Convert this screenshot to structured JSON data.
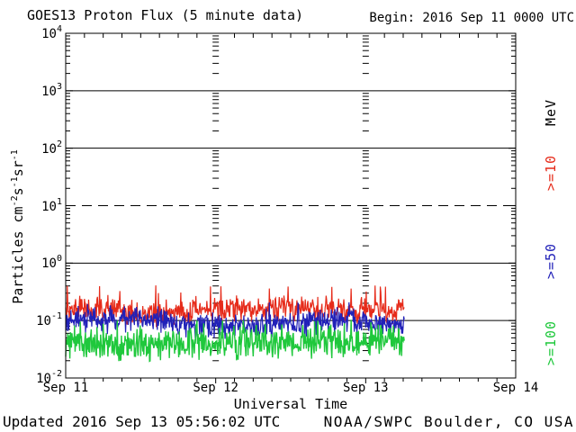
{
  "page": {
    "background": "#ffffff",
    "text_color": "#000000"
  },
  "header": {
    "title": "GOES13 Proton Flux (5 minute data)",
    "begin": "Begin: 2016 Sep 11 0000 UTC"
  },
  "footer": {
    "updated": "Updated 2016 Sep 13 05:56:02 UTC",
    "source": "NOAA/SWPC Boulder, CO USA"
  },
  "chart_data": {
    "type": "line",
    "title": "GOES13 Proton Flux (5 minute data)",
    "x_axis": {
      "label": "Universal Time",
      "start": "2016 Sep 11 0000 UTC",
      "span_days": 3,
      "tick_labels": [
        "Sep 11",
        "Sep 12",
        "Sep 13",
        "Sep 14"
      ],
      "minor_tick_hours": 3
    },
    "y_axis": {
      "label_text": "Particles cm⁻²s⁻¹sr⁻¹",
      "label_parts": [
        [
          "t",
          "Particles cm"
        ],
        [
          "s",
          "-2"
        ],
        [
          "t",
          "s"
        ],
        [
          "s",
          "-1"
        ],
        [
          "t",
          "sr"
        ],
        [
          "s",
          "-1"
        ]
      ],
      "scale": "log",
      "range": [
        0.01,
        10000
      ],
      "decade_exponents": [
        4,
        3,
        2,
        1,
        0,
        -1,
        -2
      ],
      "solid_gridlines": [
        1000,
        100,
        1,
        0.1
      ],
      "dashed_gridlines": [
        10
      ],
      "unit_label": "MeV",
      "axis_color": "#000000"
    },
    "series": [
      {
        "name": ">=10",
        "color": "#e62b1a",
        "typical": 0.145,
        "range_low": 0.095,
        "range_high": 0.27,
        "peak": 0.42,
        "spike_prob": 0.05
      },
      {
        "name": ">=50",
        "color": "#2121b8",
        "typical": 0.09,
        "range_low": 0.057,
        "range_high": 0.16,
        "peak": 0.22,
        "spike_prob": 0.03
      },
      {
        "name": ">=100",
        "color": "#1fc83c",
        "typical": 0.042,
        "range_low": 0.022,
        "range_high": 0.085,
        "peak": 0.11,
        "spike_prob": 0.03
      }
    ],
    "cadence_minutes": 5,
    "data_start_day": 0,
    "data_end_day": 2.26,
    "noise_seed": 20160913
  }
}
